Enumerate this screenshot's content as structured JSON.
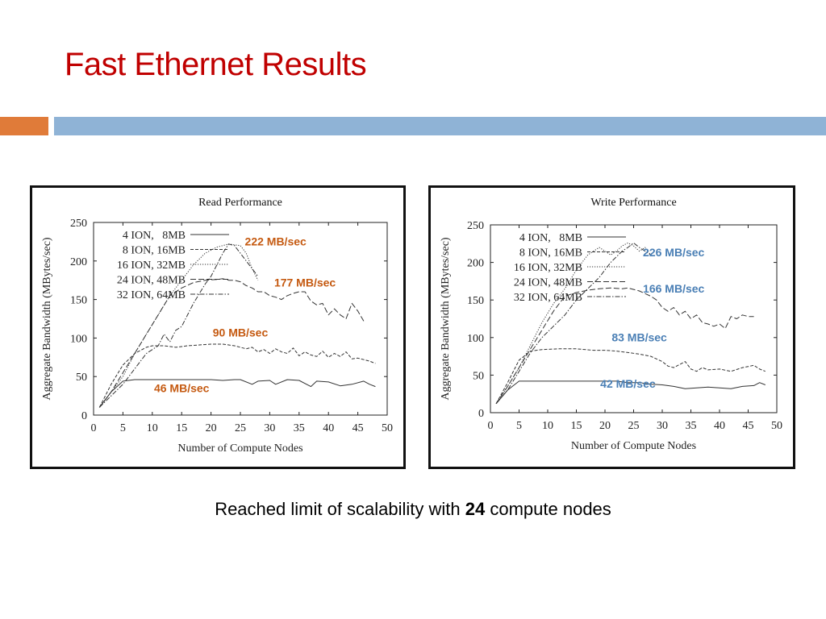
{
  "slide": {
    "title": "Fast Ethernet Results",
    "caption_before": "Reached limit of scalability with ",
    "caption_bold": "24",
    "caption_after": " compute nodes",
    "title_color": "#c00000",
    "accent_colors": [
      "#e07b39",
      "#8fb3d6"
    ]
  },
  "chart_data": [
    {
      "id": "read",
      "type": "line",
      "title": "Read Performance",
      "xlabel": "Number of Compute Nodes",
      "ylabel": "Aggregate Bandwidth (MBytes/sec)",
      "xlim": [
        0,
        50
      ],
      "ylim": [
        0,
        250
      ],
      "xticks": [
        0,
        5,
        10,
        15,
        20,
        25,
        30,
        35,
        40,
        45,
        50
      ],
      "yticks": [
        0,
        50,
        100,
        150,
        200,
        250
      ],
      "legend_position": "top-left",
      "annotation_color": "#c55a11",
      "series": [
        {
          "name": "4 ION,   8MB",
          "dash": "solid",
          "x": [
            1,
            3,
            5,
            7,
            10,
            12,
            15,
            18,
            20,
            22,
            24,
            25,
            27,
            28,
            30,
            31,
            33,
            35,
            37,
            38,
            40,
            42,
            44,
            46,
            47,
            48
          ],
          "y": [
            10,
            30,
            44,
            46,
            46,
            46,
            46,
            46,
            46,
            45,
            46,
            46,
            40,
            44,
            45,
            40,
            46,
            45,
            37,
            44,
            43,
            38,
            40,
            44,
            40,
            37
          ]
        },
        {
          "name": "8 ION, 16MB",
          "dash": "dashed",
          "x": [
            1,
            3,
            5,
            7,
            9,
            10,
            12,
            14,
            16,
            18,
            20,
            22,
            24,
            26,
            27,
            28,
            29,
            30,
            31,
            32,
            33,
            34,
            35,
            36,
            37,
            38,
            39,
            40,
            41,
            42,
            43,
            44,
            45,
            46,
            47,
            48
          ],
          "y": [
            10,
            40,
            65,
            80,
            88,
            90,
            90,
            88,
            90,
            91,
            92,
            92,
            90,
            86,
            88,
            82,
            85,
            80,
            86,
            82,
            80,
            87,
            77,
            82,
            78,
            76,
            83,
            75,
            80,
            76,
            82,
            73,
            74,
            72,
            70,
            67
          ]
        },
        {
          "name": "16 ION, 32MB",
          "dash": "dotted",
          "x": [
            1,
            3,
            5,
            7,
            9,
            11,
            13,
            15,
            17,
            19,
            21,
            23,
            25,
            26,
            27,
            28
          ],
          "y": [
            10,
            30,
            50,
            80,
            105,
            130,
            155,
            175,
            195,
            210,
            218,
            222,
            220,
            210,
            190,
            175
          ]
        },
        {
          "name": "24 ION, 48MB",
          "dash": "longdash",
          "x": [
            1,
            3,
            5,
            7,
            9,
            11,
            13,
            15,
            17,
            19,
            21,
            22,
            23,
            24,
            25,
            26,
            27,
            28,
            29,
            30,
            31,
            32,
            33,
            34,
            35,
            36,
            37,
            38,
            39,
            40,
            41,
            42,
            43,
            44,
            45,
            46
          ],
          "y": [
            10,
            30,
            55,
            80,
            105,
            130,
            155,
            165,
            172,
            175,
            176,
            177,
            175,
            175,
            173,
            168,
            165,
            160,
            160,
            155,
            153,
            150,
            155,
            158,
            160,
            160,
            148,
            143,
            145,
            130,
            138,
            130,
            125,
            145,
            135,
            122
          ]
        },
        {
          "name": "32 ION, 64MB",
          "dash": "dashdot",
          "x": [
            1,
            3,
            5,
            7,
            9,
            11,
            12,
            13,
            14,
            15,
            17,
            19,
            20,
            21,
            22,
            23,
            24,
            25,
            26,
            27,
            28
          ],
          "y": [
            10,
            25,
            40,
            60,
            80,
            90,
            105,
            95,
            110,
            115,
            145,
            170,
            180,
            195,
            210,
            222,
            220,
            210,
            200,
            190,
            180
          ]
        }
      ],
      "annotations": [
        {
          "text": "222 MB/sec",
          "x": 31,
          "y": 220
        },
        {
          "text": "177 MB/sec",
          "x": 36,
          "y": 167
        },
        {
          "text": "90 MB/sec",
          "x": 25,
          "y": 102
        },
        {
          "text": "46 MB/sec",
          "x": 15,
          "y": 30
        }
      ]
    },
    {
      "id": "write",
      "type": "line",
      "title": "Write Performance",
      "xlabel": "Number of Compute Nodes",
      "ylabel": "Aggregate Bandwidth (MBytes/sec)",
      "xlim": [
        0,
        50
      ],
      "ylim": [
        0,
        250
      ],
      "xticks": [
        0,
        5,
        10,
        15,
        20,
        25,
        30,
        35,
        40,
        45,
        50
      ],
      "yticks": [
        0,
        50,
        100,
        150,
        200,
        250
      ],
      "legend_position": "top-left",
      "annotation_color": "#4a7fb5",
      "series": [
        {
          "name": "4 ION,   8MB",
          "dash": "solid",
          "x": [
            1,
            3,
            5,
            8,
            10,
            12,
            14,
            16,
            18,
            20,
            22,
            24,
            26,
            28,
            30,
            32,
            34,
            36,
            38,
            40,
            42,
            44,
            46,
            47,
            48
          ],
          "y": [
            12,
            30,
            42,
            42,
            42,
            42,
            42,
            42,
            42,
            42,
            42,
            40,
            40,
            38,
            37,
            35,
            32,
            33,
            34,
            33,
            32,
            35,
            36,
            40,
            37
          ]
        },
        {
          "name": "8 ION, 16MB",
          "dash": "dashed",
          "x": [
            1,
            3,
            5,
            7,
            9,
            12,
            15,
            18,
            20,
            22,
            24,
            26,
            28,
            30,
            31,
            32,
            34,
            35,
            36,
            37,
            38,
            40,
            42,
            44,
            46,
            47,
            48
          ],
          "y": [
            12,
            40,
            70,
            82,
            84,
            85,
            85,
            83,
            83,
            82,
            80,
            78,
            75,
            68,
            62,
            60,
            68,
            58,
            55,
            60,
            57,
            58,
            55,
            60,
            63,
            58,
            55
          ]
        },
        {
          "name": "16 ION, 32MB",
          "dash": "dotted",
          "x": [
            1,
            3,
            5,
            7,
            9,
            11,
            13,
            15,
            17,
            19,
            20,
            21,
            22,
            23,
            24,
            25,
            26,
            27,
            28
          ],
          "y": [
            12,
            35,
            60,
            90,
            120,
            145,
            165,
            190,
            210,
            220,
            215,
            210,
            215,
            222,
            226,
            222,
            215,
            220,
            210
          ]
        },
        {
          "name": "24 ION, 48MB",
          "dash": "longdash",
          "x": [
            1,
            3,
            5,
            7,
            9,
            11,
            13,
            15,
            17,
            19,
            21,
            23,
            24,
            26,
            28,
            29,
            30,
            31,
            32,
            33,
            34,
            35,
            36,
            37,
            38,
            39,
            40,
            41,
            42,
            43,
            44,
            45,
            46
          ],
          "y": [
            12,
            35,
            60,
            85,
            110,
            135,
            155,
            160,
            163,
            165,
            166,
            165,
            166,
            162,
            155,
            150,
            140,
            135,
            140,
            130,
            135,
            125,
            130,
            120,
            118,
            115,
            118,
            112,
            128,
            125,
            130,
            128,
            128
          ]
        },
        {
          "name": "32 ION, 64MB",
          "dash": "dashdot",
          "x": [
            1,
            3,
            5,
            7,
            9,
            11,
            13,
            15,
            17,
            19,
            21,
            23,
            24,
            25,
            26,
            27,
            28
          ],
          "y": [
            12,
            30,
            55,
            80,
            100,
            115,
            130,
            150,
            165,
            180,
            200,
            215,
            220,
            226,
            220,
            215,
            210
          ]
        }
      ],
      "annotations": [
        {
          "text": "226 MB/sec",
          "x": 32,
          "y": 208
        },
        {
          "text": "166 MB/sec",
          "x": 32,
          "y": 160
        },
        {
          "text": "83 MB/sec",
          "x": 26,
          "y": 95
        },
        {
          "text": "42 MB/sec",
          "x": 24,
          "y": 33
        }
      ]
    }
  ]
}
